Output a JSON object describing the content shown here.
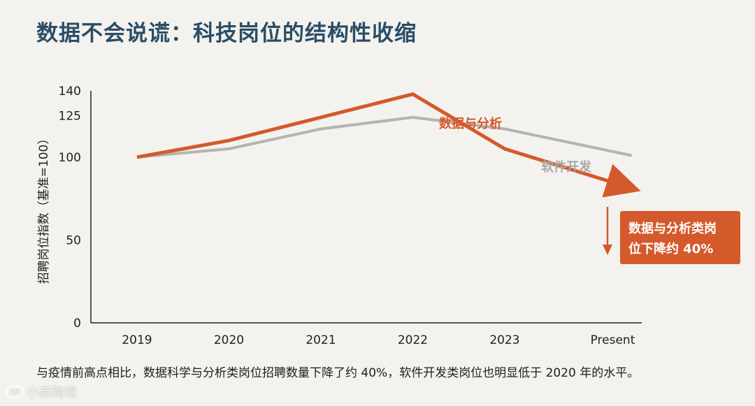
{
  "title": "数据不会说谎：科技岗位的结构性收缩",
  "chart_data": {
    "type": "line",
    "categories": [
      "2019",
      "2020",
      "2021",
      "2022",
      "2023",
      "Present"
    ],
    "series": [
      {
        "name": "数据与分析",
        "values": [
          100,
          110,
          124,
          138,
          105,
          82
        ],
        "color": "#d4592b"
      },
      {
        "name": "软件开发",
        "values": [
          100,
          105,
          117,
          124,
          117,
          101
        ],
        "color": "#b3b3b1"
      }
    ],
    "ylabel": "招聘岗位指数（基准=100）",
    "xlabel": "",
    "ylim": [
      0,
      140
    ],
    "yticks": [
      0,
      50,
      100,
      125,
      140
    ],
    "annotation": {
      "text_line1": "数据与分析类岗",
      "text_line2": "位下降约 40%",
      "color": "#d4592b"
    }
  },
  "caption": "与疫情前高点相比，数据科学与分析类岗位招聘数量下降了约 40%，软件开发类岗位也明显低于 2020 年的水平。",
  "watermark": {
    "icon": "ap-logo-icon",
    "text": "小莱跨境"
  }
}
